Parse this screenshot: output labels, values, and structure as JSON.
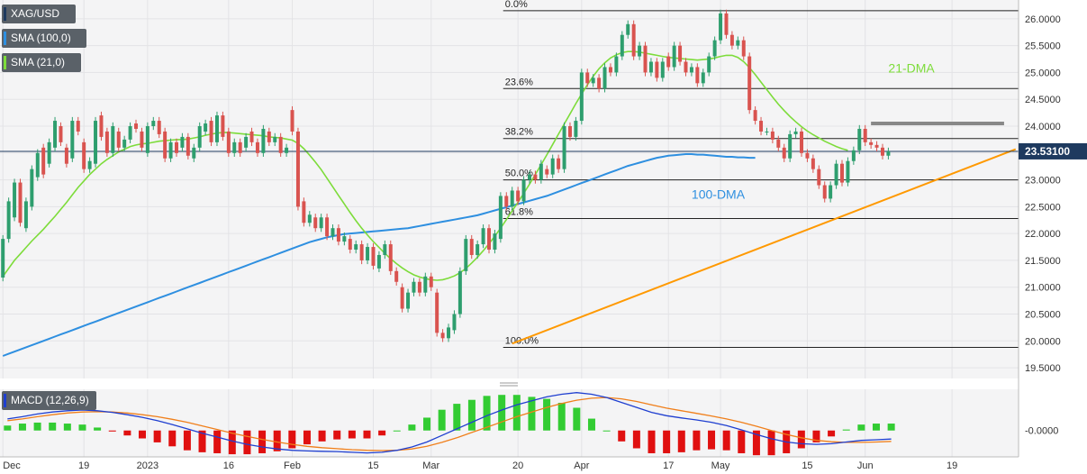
{
  "legends": {
    "symbol": "XAG/USD",
    "sma100": "SMA (100,0)",
    "sma21": "SMA (21,0)",
    "macd": "MACD (12,26,9)"
  },
  "colors": {
    "up": "#2e9e6e",
    "down": "#d9534f",
    "sma21": "#7ddc3a",
    "sma100": "#2e8fe0",
    "trend": "#ff9900",
    "resistance": "#888888",
    "price_tag": "#1e3a5f",
    "macd_line": "#1f3fd0",
    "signal_line": "#f07f1a",
    "hist_pos": "#33cc33",
    "hist_neg": "#e01010"
  },
  "chart_data": {
    "type": "candlestick",
    "y_ticks": [
      "19.5000",
      "20.0000",
      "20.5000",
      "21.0000",
      "21.5000",
      "22.0000",
      "22.5000",
      "23.0000",
      "23.5000",
      "24.0000",
      "24.5000",
      "25.0000",
      "25.5000",
      "26.0000"
    ],
    "y_tick_values": [
      19.5,
      20.0,
      20.5,
      21.0,
      21.5,
      22.0,
      22.5,
      23.0,
      23.5,
      24.0,
      24.5,
      25.0,
      25.5,
      26.0
    ],
    "ylim": [
      19.3,
      26.35
    ],
    "x_tick_labels": [
      "Dec",
      "19",
      "2023",
      "16",
      "Feb",
      "15",
      "Mar",
      "20",
      "Apr",
      "17",
      "May",
      "15",
      "Jun",
      "19"
    ],
    "x_tick_index": [
      0,
      14,
      25,
      39,
      50,
      64,
      74,
      89,
      100,
      115,
      124,
      139,
      149,
      164
    ],
    "n_slots": 176,
    "current_price": "23.53100",
    "current_price_value": 23.531,
    "candles": [
      [
        21.18,
        21.9
      ],
      [
        21.9,
        22.6
      ],
      [
        22.3,
        22.95
      ],
      [
        22.95,
        22.2
      ],
      [
        22.1,
        22.6
      ],
      [
        22.5,
        23.2
      ],
      [
        23.05,
        23.5
      ],
      [
        23.6,
        23.1
      ],
      [
        23.3,
        23.7
      ],
      [
        23.6,
        24.1
      ],
      [
        24.0,
        23.7
      ],
      [
        23.6,
        23.3
      ],
      [
        23.4,
        24.1
      ],
      [
        24.1,
        23.9
      ],
      [
        23.7,
        23.2
      ],
      [
        23.2,
        23.35
      ],
      [
        23.3,
        24.1
      ],
      [
        24.2,
        23.8
      ],
      [
        23.9,
        23.5
      ],
      [
        23.5,
        24.0
      ],
      [
        23.9,
        23.6
      ],
      [
        23.6,
        23.75
      ],
      [
        23.75,
        24.0
      ],
      [
        24.05,
        23.95
      ],
      [
        23.9,
        23.6
      ],
      [
        23.5,
        24.0
      ],
      [
        24.0,
        24.1
      ],
      [
        24.1,
        23.85
      ],
      [
        23.9,
        23.4
      ],
      [
        23.4,
        23.7
      ],
      [
        23.7,
        23.5
      ],
      [
        23.6,
        23.8
      ],
      [
        23.8,
        23.45
      ],
      [
        23.4,
        23.6
      ],
      [
        23.6,
        24.0
      ],
      [
        23.9,
        24.05
      ],
      [
        24.1,
        23.7
      ],
      [
        23.7,
        24.2
      ],
      [
        24.2,
        23.8
      ],
      [
        23.9,
        23.5
      ],
      [
        23.5,
        23.7
      ],
      [
        23.7,
        23.5
      ],
      [
        23.6,
        23.8
      ],
      [
        23.9,
        23.7
      ],
      [
        23.7,
        23.5
      ],
      [
        23.5,
        23.95
      ],
      [
        23.9,
        23.7
      ],
      [
        23.7,
        23.8
      ],
      [
        23.8,
        23.5
      ],
      [
        23.5,
        23.6
      ],
      [
        24.3,
        23.9
      ],
      [
        23.9,
        22.5
      ],
      [
        22.6,
        22.2
      ],
      [
        22.2,
        22.35
      ],
      [
        22.3,
        22.1
      ],
      [
        22.1,
        22.3
      ],
      [
        22.3,
        21.95
      ],
      [
        21.95,
        22.1
      ],
      [
        22.1,
        21.85
      ],
      [
        21.85,
        21.95
      ],
      [
        21.9,
        21.7
      ],
      [
        21.7,
        21.8
      ],
      [
        21.8,
        21.5
      ],
      [
        21.5,
        21.75
      ],
      [
        21.75,
        21.4
      ],
      [
        21.35,
        21.6
      ],
      [
        21.6,
        21.8
      ],
      [
        21.8,
        21.3
      ],
      [
        21.3,
        21.1
      ],
      [
        21.0,
        20.6
      ],
      [
        20.6,
        20.9
      ],
      [
        20.9,
        21.1
      ],
      [
        21.1,
        20.9
      ],
      [
        20.9,
        21.2
      ],
      [
        21.2,
        21.0
      ],
      [
        20.9,
        20.15
      ],
      [
        20.15,
        20.05
      ],
      [
        20.05,
        20.25
      ],
      [
        20.2,
        20.5
      ],
      [
        20.5,
        21.3
      ],
      [
        21.3,
        21.9
      ],
      [
        21.9,
        21.6
      ],
      [
        21.6,
        21.8
      ],
      [
        21.8,
        22.1
      ],
      [
        22.1,
        21.7
      ],
      [
        21.7,
        22.0
      ],
      [
        21.9,
        22.7
      ],
      [
        22.7,
        22.5
      ],
      [
        22.5,
        22.8
      ],
      [
        22.8,
        22.6
      ],
      [
        22.6,
        23.0
      ],
      [
        23.0,
        23.1
      ],
      [
        23.1,
        23.0
      ],
      [
        23.0,
        23.3
      ],
      [
        23.2,
        23.1
      ],
      [
        23.1,
        23.4
      ],
      [
        23.4,
        23.2
      ],
      [
        23.2,
        24.0
      ],
      [
        24.0,
        23.8
      ],
      [
        23.8,
        24.1
      ],
      [
        24.1,
        25.0
      ],
      [
        25.0,
        24.8
      ],
      [
        24.8,
        24.9
      ],
      [
        24.9,
        24.7
      ],
      [
        24.7,
        25.1
      ],
      [
        25.1,
        25.0
      ],
      [
        25.0,
        25.3
      ],
      [
        25.3,
        25.7
      ],
      [
        25.7,
        25.9
      ],
      [
        25.9,
        25.3
      ],
      [
        25.3,
        25.5
      ],
      [
        25.5,
        25.0
      ],
      [
        25.0,
        25.2
      ],
      [
        25.2,
        24.9
      ],
      [
        24.9,
        25.2
      ],
      [
        25.3,
        25.1
      ],
      [
        25.1,
        25.5
      ],
      [
        25.5,
        25.2
      ],
      [
        25.2,
        25.0
      ],
      [
        25.0,
        25.1
      ],
      [
        25.1,
        24.8
      ],
      [
        24.8,
        25.0
      ],
      [
        25.0,
        25.3
      ],
      [
        25.3,
        25.6
      ],
      [
        25.6,
        26.1
      ],
      [
        26.1,
        25.7
      ],
      [
        25.7,
        25.5
      ],
      [
        25.5,
        25.6
      ],
      [
        25.6,
        25.3
      ],
      [
        25.3,
        24.3
      ],
      [
        24.3,
        24.1
      ],
      [
        24.1,
        23.9
      ],
      [
        23.9,
        23.9
      ],
      [
        23.9,
        23.75
      ],
      [
        23.75,
        23.6
      ],
      [
        23.6,
        23.4
      ],
      [
        23.4,
        23.85
      ],
      [
        23.85,
        23.9
      ],
      [
        23.9,
        23.5
      ],
      [
        23.5,
        23.4
      ],
      [
        23.4,
        23.2
      ],
      [
        23.2,
        22.9
      ],
      [
        22.9,
        22.65
      ],
      [
        22.65,
        22.9
      ],
      [
        22.9,
        23.3
      ],
      [
        23.3,
        22.95
      ],
      [
        22.95,
        23.35
      ],
      [
        23.35,
        23.55
      ],
      [
        23.55,
        23.95
      ],
      [
        23.95,
        23.7
      ],
      [
        23.7,
        23.65
      ],
      [
        23.65,
        23.6
      ],
      [
        23.6,
        23.45
      ],
      [
        23.45,
        23.53
      ]
    ],
    "sma21": [
      21.2,
      21.35,
      21.5,
      21.62,
      21.74,
      21.86,
      21.97,
      22.08,
      22.2,
      22.32,
      22.45,
      22.58,
      22.72,
      22.86,
      22.98,
      23.1,
      23.2,
      23.3,
      23.38,
      23.45,
      23.52,
      23.57,
      23.62,
      23.65,
      23.67,
      23.68,
      23.7,
      23.72,
      23.73,
      23.74,
      23.75,
      23.75,
      23.76,
      23.78,
      23.8,
      23.83,
      23.85,
      23.87,
      23.88,
      23.88,
      23.87,
      23.86,
      23.85,
      23.84,
      23.83,
      23.82,
      23.8,
      23.79,
      23.78,
      23.76,
      23.74,
      23.68,
      23.58,
      23.46,
      23.33,
      23.19,
      23.03,
      22.87,
      22.71,
      22.55,
      22.39,
      22.24,
      22.1,
      21.97,
      21.85,
      21.74,
      21.63,
      21.53,
      21.44,
      21.36,
      21.29,
      21.23,
      21.19,
      21.16,
      21.14,
      21.13,
      21.14,
      21.17,
      21.21,
      21.27,
      21.35,
      21.45,
      21.56,
      21.68,
      21.81,
      21.95,
      22.1,
      22.26,
      22.42,
      22.58,
      22.75,
      22.92,
      23.1,
      23.28,
      23.47,
      23.66,
      23.85,
      24.04,
      24.23,
      24.42,
      24.6,
      24.77,
      24.93,
      25.07,
      25.18,
      25.27,
      25.33,
      25.37,
      25.39,
      25.39,
      25.38,
      25.36,
      25.34,
      25.32,
      25.3,
      25.28,
      25.27,
      25.26,
      25.25,
      25.24,
      25.23,
      25.24,
      25.25,
      25.27,
      25.3,
      25.32,
      25.32,
      25.28,
      25.2,
      25.09,
      24.96,
      24.82,
      24.68,
      24.54,
      24.41,
      24.29,
      24.18,
      24.08,
      23.99,
      23.91,
      23.84,
      23.78,
      23.72,
      23.67,
      23.62,
      23.58,
      23.55
    ],
    "sma100": [
      19.72,
      19.76,
      19.8,
      19.84,
      19.88,
      19.92,
      19.96,
      20.0,
      20.04,
      20.08,
      20.12,
      20.16,
      20.2,
      20.24,
      20.28,
      20.32,
      20.36,
      20.4,
      20.44,
      20.48,
      20.52,
      20.56,
      20.6,
      20.64,
      20.68,
      20.72,
      20.76,
      20.8,
      20.84,
      20.88,
      20.92,
      20.96,
      21.0,
      21.04,
      21.08,
      21.12,
      21.16,
      21.2,
      21.24,
      21.28,
      21.32,
      21.36,
      21.4,
      21.44,
      21.48,
      21.52,
      21.56,
      21.6,
      21.64,
      21.68,
      21.72,
      21.76,
      21.8,
      21.84,
      21.87,
      21.9,
      21.93,
      21.95,
      21.97,
      21.99,
      22.0,
      22.01,
      22.02,
      22.03,
      22.04,
      22.05,
      22.06,
      22.07,
      22.08,
      22.09,
      22.1,
      22.12,
      22.14,
      22.16,
      22.18,
      22.2,
      22.22,
      22.24,
      22.26,
      22.28,
      22.3,
      22.32,
      22.34,
      22.37,
      22.4,
      22.43,
      22.46,
      22.49,
      22.52,
      22.55,
      22.58,
      22.61,
      22.64,
      22.67,
      22.7,
      22.74,
      22.78,
      22.82,
      22.86,
      22.9,
      22.94,
      22.98,
      23.02,
      23.06,
      23.1,
      23.14,
      23.18,
      23.22,
      23.26,
      23.29,
      23.32,
      23.35,
      23.38,
      23.41,
      23.43,
      23.45,
      23.46,
      23.47,
      23.48,
      23.48,
      23.47,
      23.47,
      23.46,
      23.45,
      23.44,
      23.43,
      23.43,
      23.42,
      23.42,
      23.41,
      23.41
    ],
    "sma100_start": 0,
    "sma21_start": 0,
    "fibonacci": [
      {
        "label": "0.0%",
        "value": 26.15
      },
      {
        "label": "23.6%",
        "value": 24.7
      },
      {
        "label": "38.2%",
        "value": 23.77
      },
      {
        "label": "50.0%",
        "value": 23.0
      },
      {
        "label": "61.8%",
        "value": 22.28
      },
      {
        "label": "100.0%",
        "value": 19.88
      }
    ],
    "resistance": {
      "from_index": 150,
      "to_index": 173,
      "value": 24.05
    },
    "trendline": {
      "from_index": 88,
      "from_value": 19.95,
      "to_index": 175,
      "to_value": 23.57
    },
    "annotations": [
      {
        "text": "21-DMA",
        "index": 153,
        "value": 25.0
      },
      {
        "text": "100-DMA",
        "index": 119,
        "value": 22.65
      }
    ],
    "macd": {
      "ylabel_tick": "-0.0000",
      "macd_line": [
        0.35,
        0.42,
        0.5,
        0.56,
        0.6,
        0.62,
        0.6,
        0.55,
        0.48,
        0.4,
        0.3,
        0.18,
        0.05,
        -0.08,
        -0.2,
        -0.32,
        -0.42,
        -0.5,
        -0.56,
        -0.6,
        -0.62,
        -0.63,
        -0.64,
        -0.66,
        -0.68,
        -0.66,
        -0.6,
        -0.5,
        -0.35,
        -0.15,
        0.05,
        0.25,
        0.45,
        0.62,
        0.78,
        0.9,
        1.02,
        1.1,
        1.15,
        1.1,
        1.0,
        0.85,
        0.7,
        0.55,
        0.45,
        0.38,
        0.32,
        0.25,
        0.15,
        0.02,
        -0.12,
        -0.25,
        -0.35,
        -0.4,
        -0.42,
        -0.4,
        -0.35,
        -0.3,
        -0.28,
        -0.26
      ],
      "signal_line": [
        0.3,
        0.35,
        0.42,
        0.48,
        0.53,
        0.56,
        0.57,
        0.56,
        0.53,
        0.48,
        0.42,
        0.34,
        0.25,
        0.14,
        0.03,
        -0.08,
        -0.18,
        -0.27,
        -0.35,
        -0.42,
        -0.48,
        -0.52,
        -0.55,
        -0.58,
        -0.6,
        -0.61,
        -0.6,
        -0.56,
        -0.48,
        -0.36,
        -0.22,
        -0.06,
        0.1,
        0.26,
        0.42,
        0.56,
        0.7,
        0.82,
        0.92,
        0.98,
        1.0,
        0.96,
        0.88,
        0.78,
        0.68,
        0.6,
        0.52,
        0.44,
        0.35,
        0.25,
        0.13,
        0.0,
        -0.12,
        -0.22,
        -0.3,
        -0.34,
        -0.36,
        -0.36,
        -0.35,
        -0.33
      ]
    }
  }
}
